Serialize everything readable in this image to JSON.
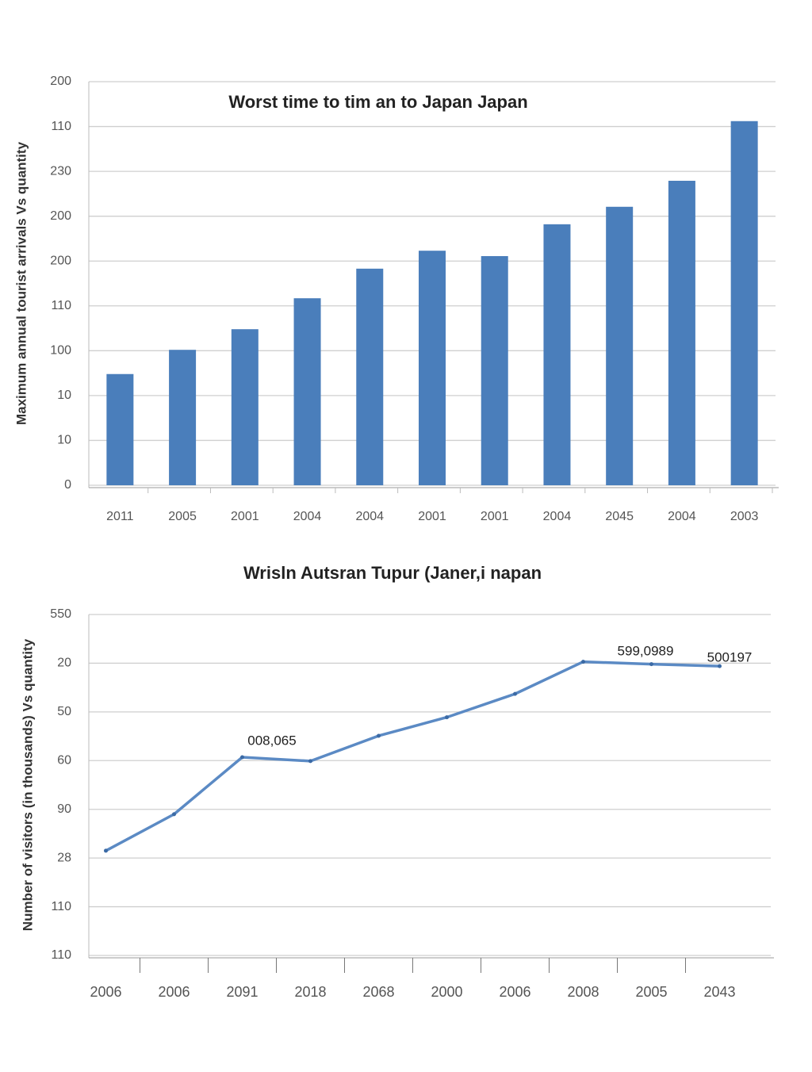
{
  "chart_data": [
    {
      "type": "bar",
      "title": "Worst time to tim an to Japan Japan",
      "y_label": "Maximum annual tourist arrivals Vs quantity",
      "categories": [
        "2011",
        "2005",
        "2001",
        "2004",
        "2004",
        "2001",
        "2001",
        "2004",
        "2045",
        "2004",
        "2003"
      ],
      "values": [
        2.48,
        3.02,
        3.48,
        4.17,
        4.83,
        5.23,
        5.11,
        5.82,
        6.21,
        6.79,
        8.12
      ],
      "color": "#4a7ebb",
      "ylim": [
        0,
        9
      ],
      "yticks": [
        0,
        {
          "value": 1,
          "label": "10"
        },
        {
          "value": 2,
          "label": "10"
        },
        {
          "value": 3,
          "label": "100"
        },
        {
          "value": 4,
          "label": "110"
        },
        {
          "value": 5,
          "label": "200"
        },
        {
          "value": 6,
          "label": "200"
        },
        {
          "value": 7,
          "label": "230"
        },
        {
          "value": 8,
          "label": "110"
        },
        {
          "value": 9,
          "label": "200"
        }
      ],
      "grid": true
    },
    {
      "type": "line",
      "title": "Wrisln Autsran Tupur (Janer,i napan",
      "y_label": "Number of visitors (in thousands) Vs quantity",
      "categories": [
        "2006",
        "2006",
        "2091",
        "2018",
        "2068",
        "2000",
        "2006",
        "2008",
        "2005",
        "2043"
      ],
      "values": [
        2.15,
        2.9,
        4.07,
        3.99,
        4.51,
        4.89,
        5.37,
        6.03,
        5.98,
        5.94
      ],
      "color": "#5b8ac4",
      "annotations": [
        "008,065",
        "599,0989",
        "500197"
      ],
      "ylim": [
        0,
        7
      ],
      "yticks": [
        {
          "value": 0,
          "label": "110"
        },
        {
          "value": 1,
          "label": "110"
        },
        {
          "value": 2,
          "label": "28"
        },
        {
          "value": 3,
          "label": "90"
        },
        {
          "value": 4,
          "label": "60"
        },
        {
          "value": 5,
          "label": "50"
        },
        {
          "value": 6,
          "label": "20"
        },
        {
          "value": 7,
          "label": "550"
        }
      ],
      "grid": true
    }
  ]
}
